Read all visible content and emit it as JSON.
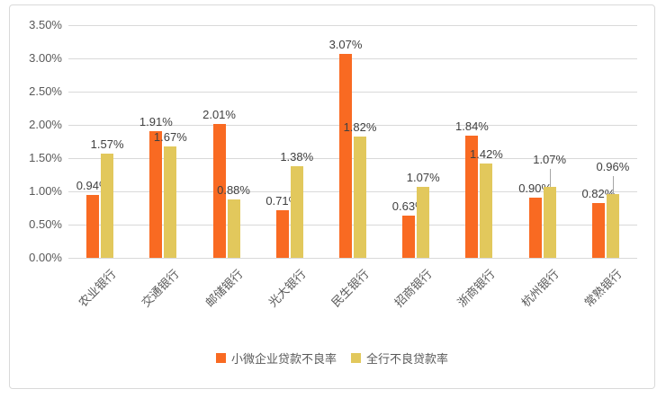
{
  "page": {
    "background": "#ffffff",
    "panel_border_color": "#d9d9d9"
  },
  "chart_data": {
    "type": "bar",
    "title": "",
    "xlabel": "",
    "ylabel": "",
    "categories": [
      "农业银行",
      "交通银行",
      "邮储银行",
      "光大银行",
      "民生银行",
      "招商银行",
      "浙商银行",
      "杭州银行",
      "常熟银行"
    ],
    "series": [
      {
        "name": "小微企业贷款不良率",
        "color": "#F96A22",
        "values": [
          0.94,
          1.91,
          2.01,
          0.71,
          3.07,
          0.63,
          1.84,
          0.9,
          0.82
        ],
        "labels": [
          "0.94%",
          "1.91%",
          "2.01%",
          "0.71%",
          "3.07%",
          "0.63%",
          "1.84%",
          "0.90%",
          "0.82%"
        ]
      },
      {
        "name": "全行不良贷款率",
        "color": "#E2C85C",
        "values": [
          1.57,
          1.67,
          0.88,
          1.38,
          1.82,
          1.07,
          1.42,
          1.07,
          0.96
        ],
        "labels": [
          "1.57%",
          "1.67%",
          "0.88%",
          "1.38%",
          "1.82%",
          "1.07%",
          "1.42%",
          "1.07%",
          "0.96%"
        ]
      }
    ],
    "y_axis": {
      "min": 0,
      "max": 3.5,
      "step": 0.5,
      "tick_labels": [
        "0.00%",
        "0.50%",
        "1.00%",
        "1.50%",
        "2.00%",
        "2.50%",
        "3.00%",
        "3.50%"
      ]
    },
    "ylim": [
      0,
      3.5
    ],
    "grid": true,
    "gridline_color": "#d9d9d9",
    "axis_label_color": "#595959",
    "data_label_color": "#404040",
    "legend_position": "bottom",
    "raised_labels": [
      {
        "series": 1,
        "index": 7,
        "raise": 20
      },
      {
        "series": 1,
        "index": 8,
        "raise": 20
      }
    ],
    "leader_line_color": "#a6a6a6"
  }
}
